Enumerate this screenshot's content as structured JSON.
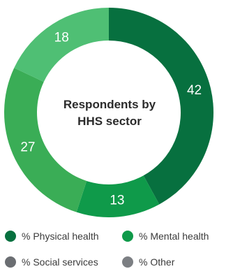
{
  "chart_data": {
    "type": "pie",
    "title_lines": [
      "Respondents by",
      "HHS sector"
    ],
    "slices": [
      {
        "label": "% Physical health",
        "value": 42,
        "color": "#07703f"
      },
      {
        "label": "% Mental health",
        "value": 13,
        "color": "#0f9a4a"
      },
      {
        "label": "% Social services",
        "value": 27,
        "color": "#3aad56"
      },
      {
        "label": "% Other",
        "value": 18,
        "color": "#4fbf74"
      }
    ],
    "legend": {
      "placement": "bottom",
      "items": [
        {
          "label": "% Physical health",
          "color": "#07703f"
        },
        {
          "label": "% Mental health",
          "color": "#0f9a4a"
        },
        {
          "label": "% Social services",
          "color": "#6b6e72"
        },
        {
          "label": "% Other",
          "color": "#7c7f83"
        }
      ]
    }
  }
}
